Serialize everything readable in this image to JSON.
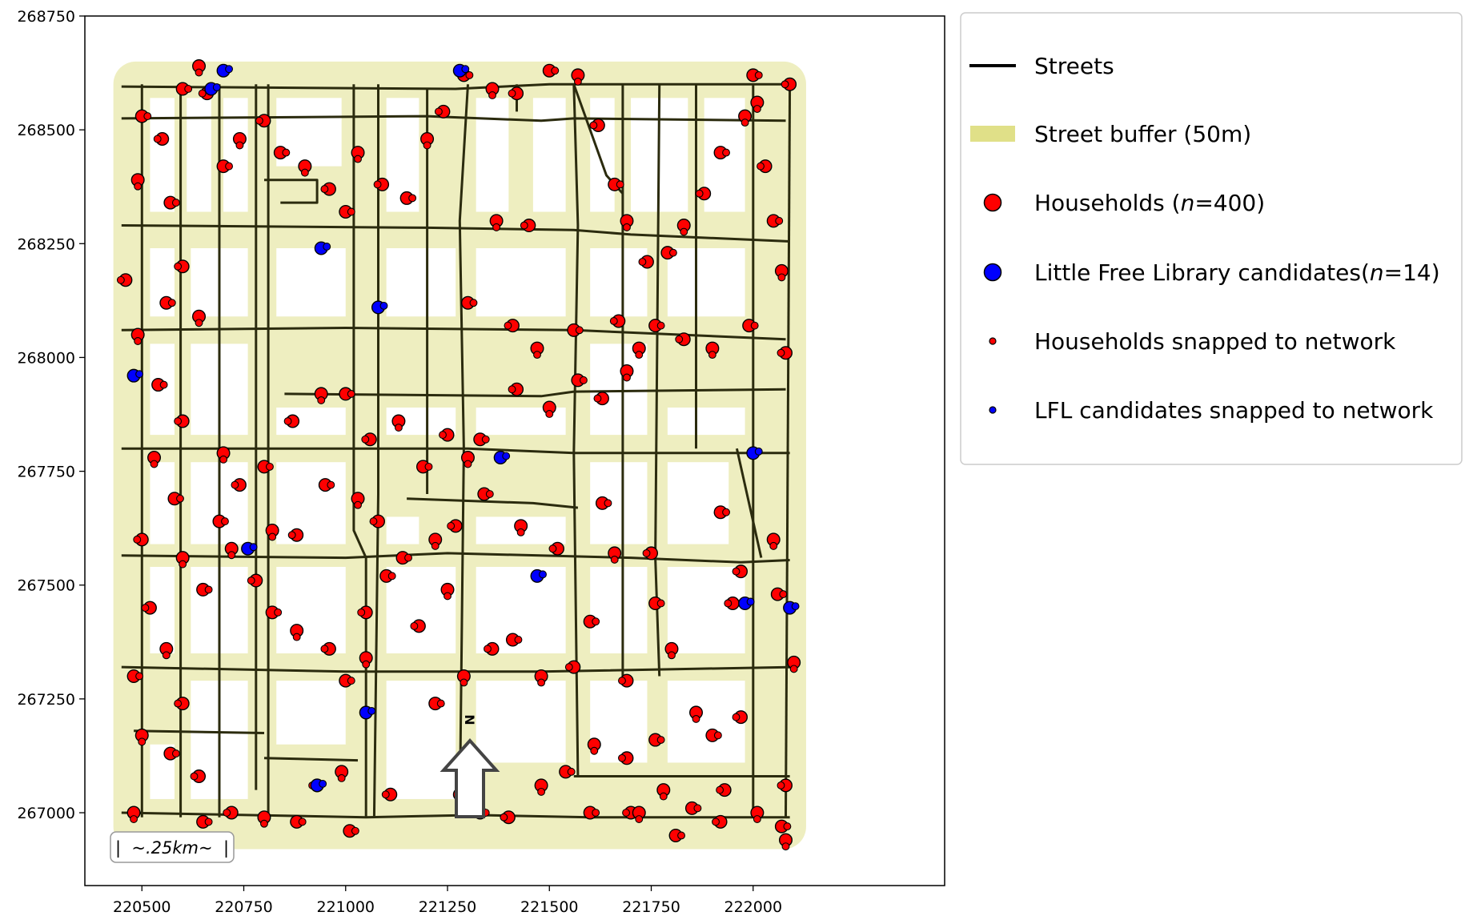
{
  "chart_data": {
    "type": "scatter",
    "title": "",
    "xlabel": "",
    "ylabel": "",
    "xlim": [
      220360,
      222470
    ],
    "ylim": [
      266840,
      268750
    ],
    "x_ticks": [
      220500,
      220750,
      221000,
      221250,
      221500,
      221750,
      222000
    ],
    "y_ticks": [
      267000,
      267250,
      267500,
      267750,
      268000,
      268250,
      268500,
      268750
    ],
    "legend_position": "outside-right",
    "grid": false,
    "colors": {
      "streets": "#2b2b0e",
      "buffer": "#e6e69e",
      "households": "#ff0000",
      "lfl": "#0000ff",
      "outline": "#000000"
    },
    "legend": [
      {
        "key": "streets",
        "label": "Streets",
        "symbol": "line"
      },
      {
        "key": "buffer",
        "label": "Street buffer (50m)",
        "symbol": "patch"
      },
      {
        "key": "households",
        "label": "Households (",
        "italic": "n",
        "suffix": "=400)",
        "symbol": "big-red"
      },
      {
        "key": "lfl",
        "label": "Little Free Library candidates(",
        "italic": "n",
        "suffix": "=14)",
        "symbol": "big-blue"
      },
      {
        "key": "hh_snapped",
        "label": "Households snapped to network",
        "symbol": "small-red"
      },
      {
        "key": "lfl_snapped",
        "label": "LFL candidates snapped to network",
        "symbol": "small-blue"
      }
    ],
    "series": [
      {
        "name": "Households",
        "count": 400,
        "sample_points": [
          [
            220500,
            268530
          ],
          [
            220550,
            268480
          ],
          [
            220490,
            268390
          ],
          [
            220570,
            268340
          ],
          [
            220600,
            268200
          ],
          [
            220640,
            268090
          ],
          [
            220560,
            268120
          ],
          [
            220460,
            268170
          ],
          [
            220490,
            268050
          ],
          [
            220540,
            267940
          ],
          [
            220600,
            267860
          ],
          [
            220530,
            267780
          ],
          [
            220580,
            267690
          ],
          [
            220500,
            267600
          ],
          [
            220600,
            267560
          ],
          [
            220650,
            267490
          ],
          [
            220520,
            267450
          ],
          [
            220560,
            267360
          ],
          [
            220480,
            267300
          ],
          [
            220600,
            267240
          ],
          [
            220500,
            267170
          ],
          [
            220570,
            267130
          ],
          [
            220640,
            267080
          ],
          [
            220480,
            267000
          ],
          [
            220650,
            266980
          ],
          [
            220720,
            267000
          ],
          [
            220800,
            266990
          ],
          [
            220880,
            266980
          ],
          [
            220930,
            267060
          ],
          [
            220990,
            267090
          ],
          [
            221010,
            266960
          ],
          [
            221110,
            267040
          ],
          [
            221280,
            267040
          ],
          [
            221330,
            267000
          ],
          [
            221400,
            266990
          ],
          [
            221480,
            267060
          ],
          [
            221600,
            267000
          ],
          [
            221700,
            267000
          ],
          [
            221780,
            267050
          ],
          [
            221850,
            267010
          ],
          [
            221930,
            267050
          ],
          [
            222010,
            267000
          ],
          [
            222070,
            266970
          ],
          [
            222080,
            267060
          ],
          [
            222100,
            267330
          ],
          [
            222060,
            267480
          ],
          [
            221970,
            267530
          ],
          [
            222050,
            267600
          ],
          [
            221920,
            267660
          ],
          [
            221950,
            267460
          ],
          [
            221800,
            267360
          ],
          [
            221760,
            267460
          ],
          [
            221750,
            267570
          ],
          [
            221660,
            267570
          ],
          [
            221600,
            267420
          ],
          [
            221560,
            267320
          ],
          [
            221480,
            267300
          ],
          [
            221410,
            267380
          ],
          [
            221360,
            267360
          ],
          [
            221290,
            267300
          ],
          [
            221220,
            267240
          ],
          [
            221180,
            267410
          ],
          [
            221250,
            267490
          ],
          [
            221100,
            267520
          ],
          [
            221050,
            267440
          ],
          [
            221050,
            267340
          ],
          [
            221000,
            267290
          ],
          [
            220960,
            267360
          ],
          [
            220880,
            267400
          ],
          [
            220820,
            267440
          ],
          [
            220780,
            267510
          ],
          [
            220720,
            267580
          ],
          [
            220690,
            267640
          ],
          [
            220740,
            267720
          ],
          [
            220700,
            267790
          ],
          [
            220800,
            267760
          ],
          [
            220870,
            267860
          ],
          [
            220940,
            267920
          ],
          [
            221000,
            267920
          ],
          [
            221060,
            267820
          ],
          [
            221130,
            267860
          ],
          [
            221190,
            267760
          ],
          [
            221250,
            267830
          ],
          [
            221300,
            267780
          ],
          [
            221330,
            267820
          ],
          [
            221420,
            267930
          ],
          [
            221500,
            267890
          ],
          [
            221570,
            267950
          ],
          [
            221630,
            267910
          ],
          [
            221690,
            267970
          ],
          [
            221760,
            268070
          ],
          [
            221830,
            268040
          ],
          [
            221900,
            268020
          ],
          [
            221990,
            268070
          ],
          [
            222080,
            268010
          ],
          [
            222070,
            268190
          ],
          [
            222050,
            268300
          ],
          [
            222030,
            268420
          ],
          [
            222010,
            268560
          ],
          [
            222000,
            268620
          ],
          [
            222090,
            268600
          ],
          [
            221980,
            268530
          ],
          [
            221920,
            268450
          ],
          [
            221880,
            268360
          ],
          [
            221830,
            268290
          ],
          [
            221790,
            268230
          ],
          [
            221740,
            268210
          ],
          [
            221690,
            268300
          ],
          [
            221660,
            268380
          ],
          [
            221620,
            268510
          ],
          [
            221570,
            268620
          ],
          [
            221500,
            268630
          ],
          [
            221420,
            268580
          ],
          [
            221360,
            268590
          ],
          [
            221290,
            268620
          ],
          [
            221240,
            268540
          ],
          [
            221200,
            268480
          ],
          [
            221150,
            268350
          ],
          [
            221090,
            268380
          ],
          [
            221030,
            268450
          ],
          [
            221000,
            268320
          ],
          [
            220960,
            268370
          ],
          [
            220900,
            268420
          ],
          [
            220840,
            268450
          ],
          [
            220800,
            268520
          ],
          [
            220740,
            268480
          ],
          [
            220700,
            268420
          ],
          [
            220660,
            268580
          ],
          [
            220640,
            268640
          ],
          [
            220600,
            268590
          ],
          [
            221450,
            268290
          ],
          [
            221370,
            268300
          ],
          [
            221300,
            268120
          ],
          [
            221410,
            268070
          ],
          [
            221470,
            268020
          ],
          [
            221560,
            268060
          ],
          [
            221670,
            268080
          ],
          [
            221720,
            268020
          ],
          [
            221630,
            267680
          ],
          [
            221520,
            267580
          ],
          [
            221430,
            267630
          ],
          [
            221340,
            267700
          ],
          [
            221270,
            267630
          ],
          [
            221220,
            267600
          ],
          [
            221140,
            267560
          ],
          [
            221080,
            267640
          ],
          [
            221030,
            267690
          ],
          [
            220950,
            267720
          ],
          [
            220880,
            267610
          ],
          [
            220820,
            267620
          ],
          [
            221760,
            267160
          ],
          [
            221690,
            267120
          ],
          [
            221610,
            267150
          ],
          [
            221540,
            267090
          ],
          [
            221690,
            267290
          ],
          [
            221860,
            267220
          ],
          [
            221900,
            267170
          ],
          [
            221970,
            267210
          ],
          [
            221720,
            267000
          ],
          [
            221810,
            266950
          ],
          [
            221920,
            266980
          ],
          [
            222080,
            266940
          ]
        ]
      },
      {
        "name": "Little Free Library candidates",
        "count": 14,
        "points": [
          [
            220700,
            268630
          ],
          [
            220670,
            268590
          ],
          [
            221280,
            268630
          ],
          [
            220940,
            268240
          ],
          [
            221080,
            268110
          ],
          [
            220480,
            267960
          ],
          [
            221380,
            267780
          ],
          [
            222000,
            267790
          ],
          [
            220760,
            267580
          ],
          [
            221470,
            267520
          ],
          [
            221980,
            267460
          ],
          [
            222090,
            267450
          ],
          [
            221050,
            267220
          ],
          [
            220930,
            267060
          ]
        ]
      }
    ],
    "annotations": {
      "scale_bar": "|  ~.25km~  |",
      "north_arrow": "N"
    }
  }
}
